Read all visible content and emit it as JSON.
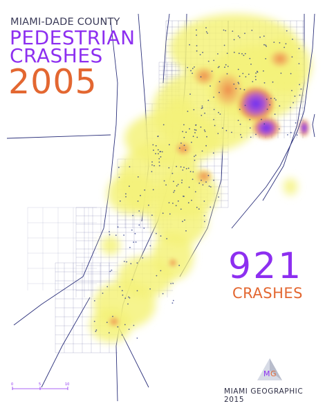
{
  "title": {
    "county": "MIAMI-DADE COUNTY",
    "line1": "PEDESTRIAN",
    "line2": "CRASHES",
    "year": "2005"
  },
  "summary": {
    "count": "921",
    "label": "CRASHES"
  },
  "credit": "MIAMI GEOGRAPHIC 2015",
  "logo": {
    "text_left": "M",
    "text_right": "G"
  },
  "scale_bar": {
    "ticks": [
      "0",
      "5",
      "10"
    ]
  },
  "colors": {
    "heat_low": "#f4f27a",
    "heat_mid": "#ee8a4a",
    "heat_high": "#7a3cf0",
    "roads": "#2a2f7a",
    "title_purple": "#8d2ff0",
    "title_orange": "#e36731"
  }
}
